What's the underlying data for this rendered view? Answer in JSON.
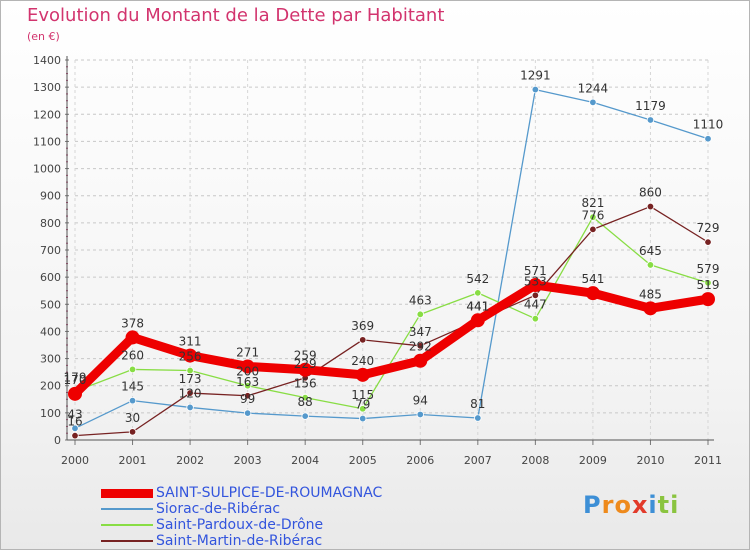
{
  "chart_data": {
    "type": "line",
    "title": "Evolution du Montant de la Dette par Habitant",
    "subtitle": "(en €)",
    "x": [
      "2000",
      "2001",
      "2002",
      "2003",
      "2004",
      "2005",
      "2006",
      "2007",
      "2008",
      "2009",
      "2010",
      "2011"
    ],
    "ylim": [
      0,
      1400
    ],
    "yticks": [
      0,
      100,
      200,
      300,
      400,
      500,
      600,
      700,
      800,
      900,
      1000,
      1100,
      1200,
      1300,
      1400
    ],
    "grid": "horizontal dashed",
    "legend_position": "bottom",
    "series": [
      {
        "name": "SAINT-SULPICE-DE-ROUMAGNAC",
        "color": "#ee0000",
        "values": [
          170,
          378,
          311,
          271,
          259,
          240,
          292,
          441,
          571,
          541,
          485,
          519
        ]
      },
      {
        "name": "Siorac-de-Ribérac",
        "color": "#5599cc",
        "values": [
          43,
          145,
          120,
          99,
          88,
          79,
          94,
          81,
          1291,
          1244,
          1179,
          1110
        ]
      },
      {
        "name": "Saint-Pardoux-de-Drône",
        "color": "#88dd44",
        "values": [
          179,
          260,
          256,
          200,
          156,
          115,
          463,
          542,
          447,
          821,
          645,
          579
        ]
      },
      {
        "name": "Saint-Martin-de-Ribérac",
        "color": "#772222",
        "values": [
          16,
          30,
          173,
          163,
          229,
          369,
          347,
          441,
          533,
          776,
          860,
          729
        ]
      }
    ]
  },
  "logo": {
    "letters": [
      "P",
      "r",
      "o",
      "x",
      "i",
      "t",
      "i"
    ],
    "colors": [
      "#3d8fd6",
      "#ee8a1c",
      "#ee8a1c",
      "#e23a2a",
      "#3d8fd6",
      "#8ac43f",
      "#8ac43f"
    ]
  }
}
